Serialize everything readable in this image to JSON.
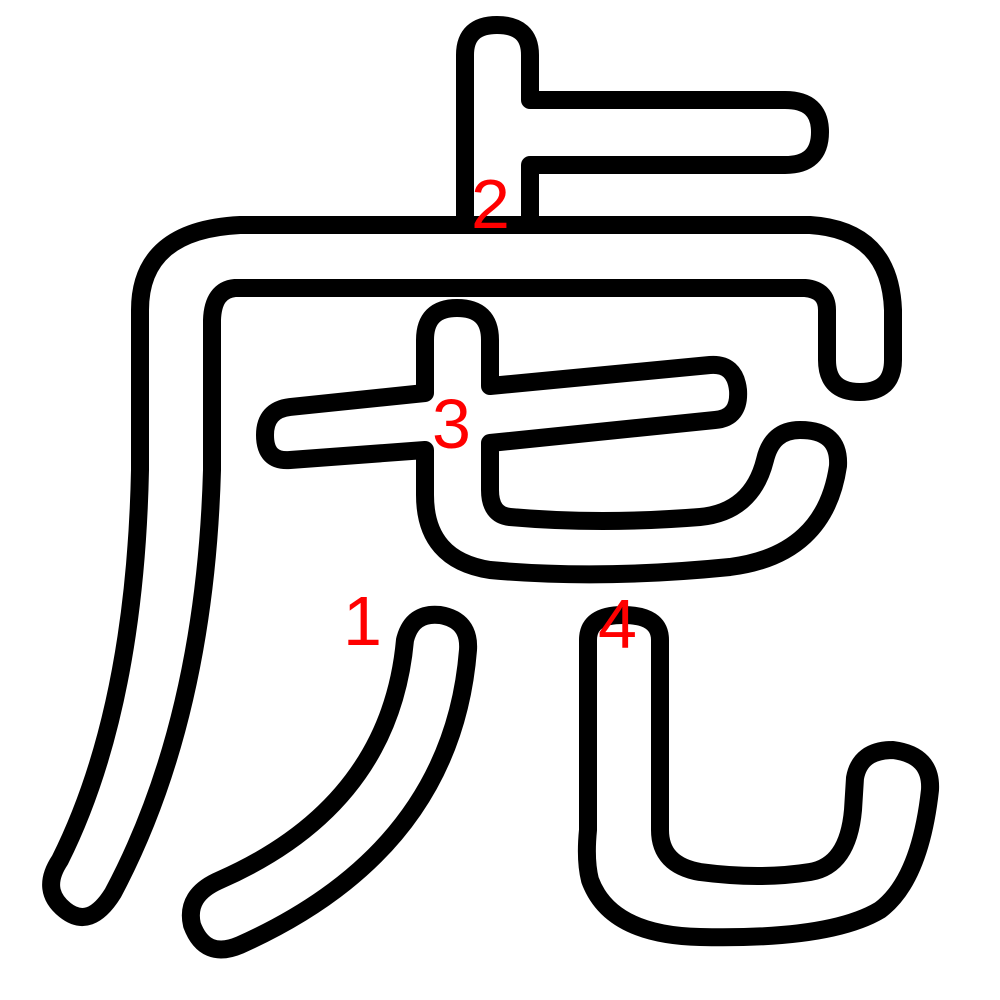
{
  "diagram": {
    "character": "虎",
    "outline_color": "#000000",
    "number_color": "#ff0000",
    "background_color": "#ffffff",
    "stroke_numbers": [
      "1",
      "2",
      "3",
      "4"
    ]
  }
}
